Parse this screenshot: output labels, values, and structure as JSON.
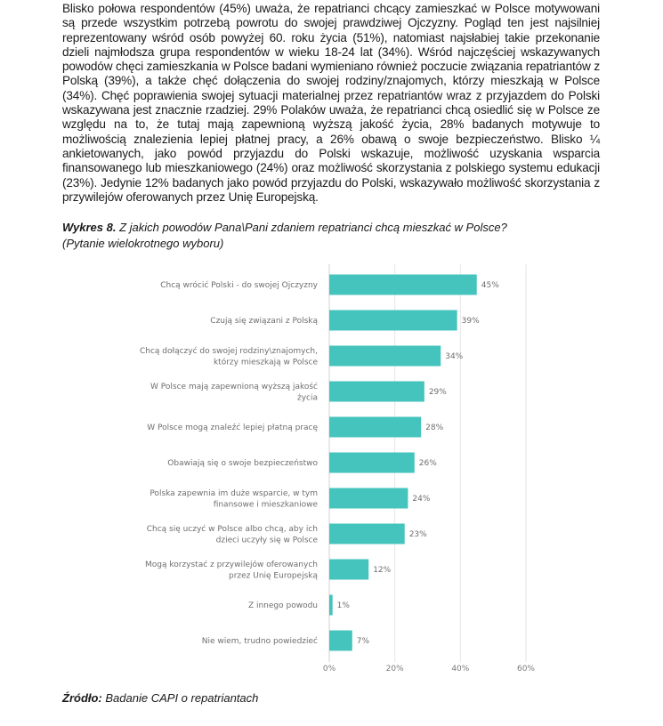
{
  "paragraph": "Blisko połowa respondentów (45%) uważa, że repatrianci chcący zamieszkać w Polsce motywowani są przede wszystkim potrzebą powrotu do swojej prawdziwej Ojczyzny. Pogląd ten jest najsilniej reprezentowany wśród osób powyżej 60. roku życia (51%), natomiast najsłabiej takie przekonanie dzieli najmłodsza grupa respondentów w wieku 18-24 lat (34%). Wśród najczęściej wskazywanych powodów chęci zamieszkania w Polsce badani wymieniano również poczucie związania repatriantów z Polską (39%), a także chęć dołączenia do swojej rodziny/znajomych, którzy mieszkają w Polsce (34%). Chęć poprawienia swojej sytuacji materialnej przez repatriantów wraz z przyjazdem do Polski wskazywana jest znacznie rzadziej. 29% Polaków uważa, że repatrianci chcą osiedlić się w Polsce ze względu na to, że tutaj mają zapewnioną wyższą jakość życia, 28% badanych motywuje to możliwością znalezienia lepiej płatnej pracy, a 26% obawą o swoje bezpieczeństwo. Blisko ¼ ankietowanych, jako powód przyjazdu do Polski wskazuje, możliwość uzyskania wsparcia finansowanego lub mieszkaniowego (24%) oraz możliwość skorzystania z polskiego systemu edukacji (23%). Jedynie 12% badanych jako powód przyjazdu do Polski, wskazywało możliwość skorzystania z przywilejów oferowanych przez Unię Europejską.",
  "caption": {
    "label": "Wykres 8.",
    "title": "Z jakich powodów Pana\\Pani zdaniem repatrianci chcą mieszkać w Polsce?",
    "subtitle": "(Pytanie wielokrotnego wyboru)"
  },
  "source": {
    "label": "Źródło:",
    "text": "Badanie CAPI o repatriantach"
  },
  "chart_data": {
    "type": "bar",
    "orientation": "horizontal",
    "bar_color": "#45c4bd",
    "categories": [
      [
        "Chcą wrócić Polski - do swojej Ojczyzny"
      ],
      [
        "Czują się związani z Polską"
      ],
      [
        "Chcą dołączyć do swojej rodziny\\znajomych,",
        "którzy mieszkają w Polsce"
      ],
      [
        "W Polsce mają zapewnioną wyższą jakość",
        "życia"
      ],
      [
        "W Polsce mogą znaleźć lepiej płatną pracę"
      ],
      [
        "Obawiają się o swoje bezpieczeństwo"
      ],
      [
        "Polska zapewnia im duże wsparcie, w tym",
        "finansowe i mieszkaniowe"
      ],
      [
        "Chcą się uczyć w Polsce albo chcą, aby ich",
        "dzieci uczyły się w Polsce"
      ],
      [
        "Mogą korzystać z przywilejów oferowanych",
        "przez Unię Europejską"
      ],
      [
        "Z innego powodu"
      ],
      [
        "Nie wiem, trudno powiedzieć"
      ]
    ],
    "values": [
      45,
      39,
      34,
      29,
      28,
      26,
      24,
      23,
      12,
      1,
      7
    ],
    "value_labels": [
      "45%",
      "39%",
      "34%",
      "29%",
      "28%",
      "26%",
      "24%",
      "23%",
      "12%",
      "1%",
      "7%"
    ],
    "xlim": [
      0,
      60
    ],
    "x_ticks": [
      0,
      20,
      40,
      60
    ],
    "x_tick_labels": [
      "0%",
      "20%",
      "40%",
      "60%"
    ],
    "grid": true
  }
}
